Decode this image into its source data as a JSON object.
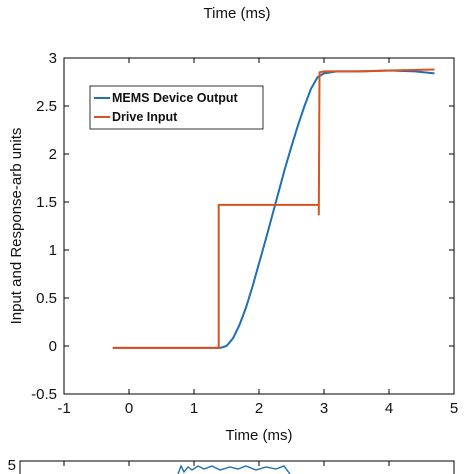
{
  "header_fragment": "Time (ms)",
  "chart_data": {
    "type": "line",
    "title": "",
    "xlabel": "Time (ms)",
    "ylabel": "Input and Response-arb units",
    "xlim": [
      -1,
      5
    ],
    "ylim": [
      -0.5,
      3
    ],
    "xticks": [
      -1,
      0,
      1,
      2,
      3,
      4,
      5
    ],
    "yticks": [
      -0.5,
      0,
      0.5,
      1,
      1.5,
      2,
      2.5,
      3
    ],
    "grid": false,
    "legend": "top-left",
    "series": [
      {
        "name": "MEMS Device Output",
        "color": "#1f6fb4",
        "x": [
          -0.25,
          1.0,
          1.4,
          1.5,
          1.6,
          1.7,
          1.8,
          1.9,
          2.0,
          2.1,
          2.2,
          2.3,
          2.4,
          2.5,
          2.6,
          2.7,
          2.8,
          2.9,
          3.0,
          3.2,
          3.6,
          4.0,
          4.4,
          4.7
        ],
        "y": [
          -0.02,
          -0.02,
          -0.02,
          0.0,
          0.08,
          0.22,
          0.4,
          0.62,
          0.86,
          1.1,
          1.35,
          1.6,
          1.85,
          2.08,
          2.3,
          2.5,
          2.68,
          2.8,
          2.84,
          2.86,
          2.86,
          2.87,
          2.86,
          2.84
        ]
      },
      {
        "name": "Drive Input",
        "color": "#d9531e",
        "x": [
          -0.25,
          1.38,
          1.38,
          2.92,
          2.92,
          2.93,
          3.0,
          3.5,
          4.0,
          4.7
        ],
        "y": [
          -0.02,
          -0.02,
          1.47,
          1.47,
          1.37,
          2.85,
          2.86,
          2.86,
          2.87,
          2.88
        ]
      }
    ]
  },
  "bottom_fragment": {
    "tick_label": "5"
  }
}
